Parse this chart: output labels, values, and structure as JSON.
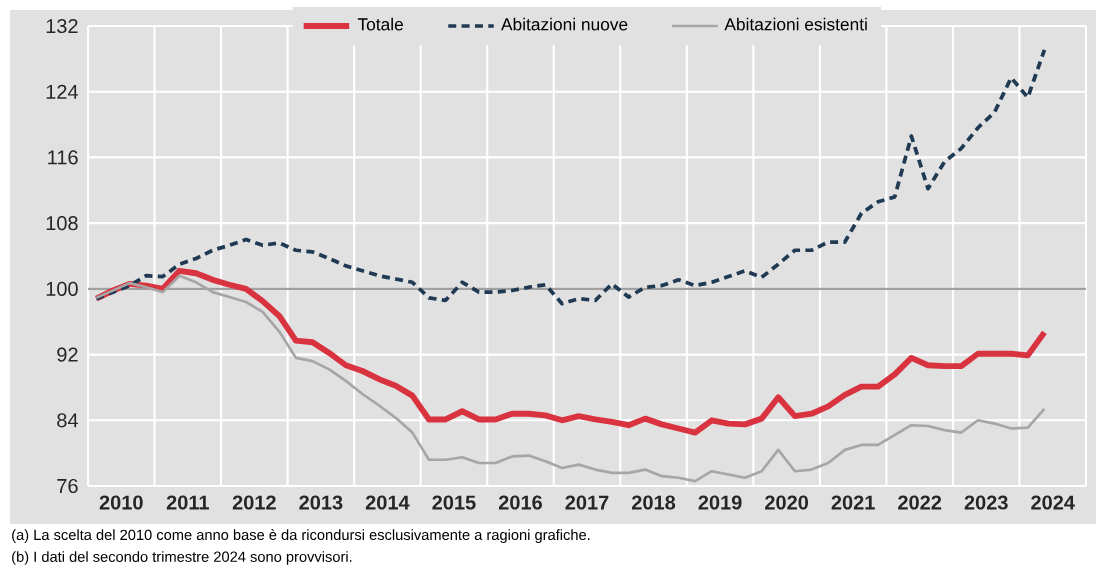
{
  "chart_data": {
    "type": "line",
    "x": [
      2010.125,
      2010.375,
      2010.625,
      2010.875,
      2011.125,
      2011.375,
      2011.625,
      2011.875,
      2012.125,
      2012.375,
      2012.625,
      2012.875,
      2013.125,
      2013.375,
      2013.625,
      2013.875,
      2014.125,
      2014.375,
      2014.625,
      2014.875,
      2015.125,
      2015.375,
      2015.625,
      2015.875,
      2016.125,
      2016.375,
      2016.625,
      2016.875,
      2017.125,
      2017.375,
      2017.625,
      2017.875,
      2018.125,
      2018.375,
      2018.625,
      2018.875,
      2019.125,
      2019.375,
      2019.625,
      2019.875,
      2020.125,
      2020.375,
      2020.625,
      2020.875,
      2021.125,
      2021.375,
      2021.625,
      2021.875,
      2022.125,
      2022.375,
      2022.625,
      2022.875,
      2023.125,
      2023.375,
      2023.625,
      2023.875,
      2024.125,
      2024.375
    ],
    "series": [
      {
        "name": "Totale",
        "color": "#d9333f",
        "line_style": "solid",
        "values": [
          98.8,
          99.8,
          100.6,
          100.4,
          100.0,
          102.2,
          101.9,
          101.1,
          100.5,
          100.0,
          98.5,
          96.7,
          93.7,
          93.5,
          92.2,
          90.7,
          90.0,
          89.0,
          88.2,
          87.0,
          84.1,
          84.1,
          85.1,
          84.1,
          84.1,
          84.8,
          84.8,
          84.6,
          84.0,
          84.5,
          84.1,
          83.8,
          83.4,
          84.2,
          83.5,
          83.0,
          82.5,
          84.0,
          83.6,
          83.5,
          84.2,
          86.8,
          84.5,
          84.8,
          85.7,
          87.1,
          88.1,
          88.1,
          89.6,
          91.6,
          90.7,
          90.6,
          90.6,
          92.1,
          92.1,
          92.1,
          91.9,
          94.7
        ]
      },
      {
        "name": "Abitazioni nuove",
        "color": "#1f3a52",
        "line_style": "dashed",
        "values": [
          98.8,
          99.6,
          100.4,
          101.6,
          101.5,
          103.0,
          103.7,
          104.7,
          105.3,
          106.0,
          105.3,
          105.6,
          104.7,
          104.5,
          103.7,
          102.8,
          102.2,
          101.6,
          101.2,
          100.8,
          98.9,
          98.6,
          100.8,
          99.6,
          99.6,
          99.8,
          100.2,
          100.5,
          98.2,
          98.8,
          98.6,
          100.6,
          99.0,
          100.2,
          100.4,
          101.1,
          100.4,
          100.8,
          101.5,
          102.2,
          101.4,
          103.0,
          104.7,
          104.7,
          105.7,
          105.7,
          109.2,
          110.6,
          111.2,
          118.6,
          112.2,
          115.5,
          117.1,
          119.6,
          121.5,
          125.7,
          123.3,
          129.1
        ]
      },
      {
        "name": "Abitazioni esistenti",
        "color": "#a6a6a6",
        "line_style": "solid",
        "values": [
          98.9,
          99.8,
          100.7,
          100.2,
          99.6,
          101.6,
          100.8,
          99.6,
          99.0,
          98.4,
          97.2,
          94.8,
          91.6,
          91.2,
          90.2,
          88.8,
          87.2,
          85.8,
          84.3,
          82.5,
          79.2,
          79.2,
          79.5,
          78.8,
          78.8,
          79.6,
          79.7,
          79.0,
          78.2,
          78.6,
          78.0,
          77.6,
          77.6,
          78.0,
          77.2,
          77.0,
          76.6,
          77.8,
          77.4,
          77.0,
          77.8,
          80.4,
          77.8,
          78.0,
          78.8,
          80.4,
          81.0,
          81.0,
          82.2,
          83.4,
          83.3,
          82.8,
          82.5,
          84.0,
          83.6,
          83.0,
          83.1,
          85.4
        ]
      }
    ],
    "xlim": [
      2010,
      2025
    ],
    "xticks": [
      {
        "value": 2010,
        "label": null
      },
      {
        "value": 2010.5,
        "label": "2010"
      },
      {
        "value": 2011,
        "label": null
      },
      {
        "value": 2011.5,
        "label": "2011"
      },
      {
        "value": 2012,
        "label": null
      },
      {
        "value": 2012.5,
        "label": "2012"
      },
      {
        "value": 2013,
        "label": null
      },
      {
        "value": 2013.5,
        "label": "2013"
      },
      {
        "value": 2014,
        "label": null
      },
      {
        "value": 2014.5,
        "label": "2014"
      },
      {
        "value": 2015,
        "label": null
      },
      {
        "value": 2015.5,
        "label": "2015"
      },
      {
        "value": 2016,
        "label": null
      },
      {
        "value": 2016.5,
        "label": "2016"
      },
      {
        "value": 2017,
        "label": null
      },
      {
        "value": 2017.5,
        "label": "2017"
      },
      {
        "value": 2018,
        "label": null
      },
      {
        "value": 2018.5,
        "label": "2018"
      },
      {
        "value": 2019,
        "label": null
      },
      {
        "value": 2019.5,
        "label": "2019"
      },
      {
        "value": 2020,
        "label": null
      },
      {
        "value": 2020.5,
        "label": "2020"
      },
      {
        "value": 2021,
        "label": null
      },
      {
        "value": 2021.5,
        "label": "2021"
      },
      {
        "value": 2022,
        "label": null
      },
      {
        "value": 2022.5,
        "label": "2022"
      },
      {
        "value": 2023,
        "label": null
      },
      {
        "value": 2023.5,
        "label": "2023"
      },
      {
        "value": 2024,
        "label": null
      },
      {
        "value": 2024.5,
        "label": "2024"
      },
      {
        "value": 2025,
        "label": null
      }
    ],
    "ylim": [
      76,
      132
    ],
    "yticks": [
      76,
      84,
      92,
      100,
      108,
      116,
      124,
      132
    ],
    "grid": true,
    "legend": "top",
    "marker": "none",
    "ref_lines": [
      {
        "axis": "y",
        "value": 100,
        "color": "#a0a0a0"
      }
    ],
    "annotations": [
      "(a) La scelta del 2010 come anno base è da ricondursi esclusivamente a ragioni grafiche.",
      "(b) I dati del secondo trimestre 2024 sono provvisori."
    ]
  }
}
